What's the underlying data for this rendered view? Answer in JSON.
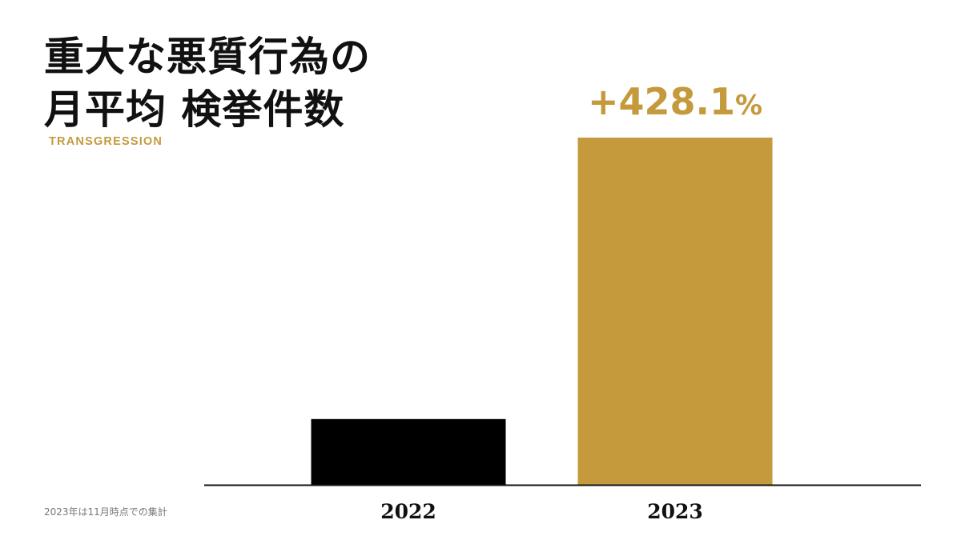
{
  "title_line1": "重大な悪質行為の",
  "title_line2": "月平均 検挙件数",
  "subtitle": "TRANSGRESSION",
  "footnote": "2023年は11月時点での集計",
  "colors": {
    "bar_2022": "#000000",
    "bar_2023": "#c49a3c",
    "accent": "#c49a3c",
    "axis": "#111111"
  },
  "chart_data": {
    "type": "bar",
    "categories": [
      "2022",
      "2023"
    ],
    "values": [
      1,
      5.281
    ],
    "value_unit": "relative to 2022 (2022 = 1)",
    "annotation": "+428.1%",
    "annotation_target": "2023",
    "title": "重大な悪質行為の 月平均 検挙件数",
    "xlabel": "",
    "ylabel": "",
    "ylim": [
      0,
      5.281
    ],
    "grid": false,
    "legend": "none"
  }
}
